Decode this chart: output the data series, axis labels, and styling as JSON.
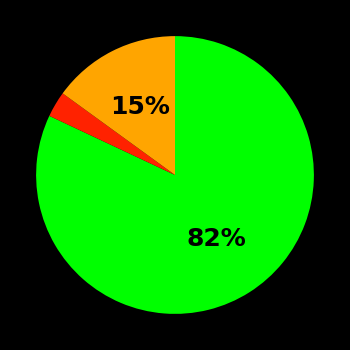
{
  "slices": [
    82,
    3,
    15
  ],
  "colors": [
    "#00ff00",
    "#ff2200",
    "#ffa500"
  ],
  "labels": [
    "82%",
    "",
    "15%"
  ],
  "label_colors": [
    "#000000",
    "#000000",
    "#000000"
  ],
  "background_color": "#000000",
  "startangle": 90,
  "figsize": [
    3.5,
    3.5
  ],
  "dpi": 100,
  "label_fontsize": 18,
  "label_fontweight": "bold",
  "label_radii": [
    0.55,
    0.0,
    0.55
  ]
}
